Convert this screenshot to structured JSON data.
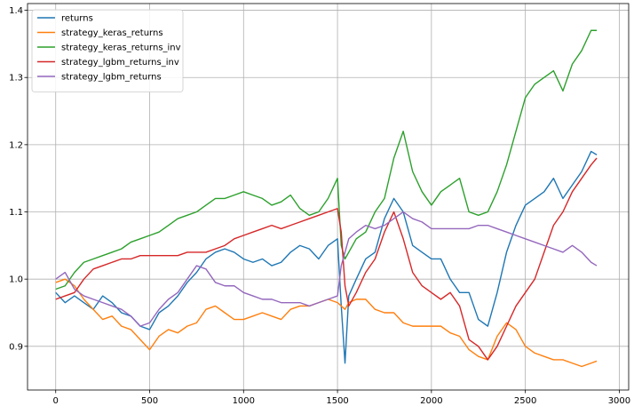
{
  "chart_data": {
    "type": "line",
    "xlim": [
      -150,
      3050
    ],
    "ylim": [
      0.835,
      1.41
    ],
    "xticks": [
      0,
      500,
      1000,
      1500,
      2000,
      2500,
      3000
    ],
    "xtick_labels": [
      "0",
      "500",
      "1000",
      "1500",
      "2000",
      "2500",
      "3000"
    ],
    "yticks": [
      0.9,
      1.0,
      1.1,
      1.2,
      1.3,
      1.4
    ],
    "ytick_labels": [
      "0.9",
      "1.0",
      "1.1",
      "1.2",
      "1.3",
      "1.4"
    ],
    "grid": true,
    "legend_position": "top-left",
    "series": [
      {
        "name": "returns",
        "color": "#1f77b4",
        "x": [
          0,
          50,
          100,
          150,
          200,
          250,
          300,
          350,
          400,
          450,
          500,
          550,
          600,
          650,
          700,
          750,
          800,
          850,
          900,
          950,
          1000,
          1050,
          1100,
          1150,
          1200,
          1250,
          1300,
          1350,
          1400,
          1450,
          1500,
          1520,
          1540,
          1560,
          1600,
          1650,
          1700,
          1750,
          1800,
          1850,
          1900,
          1950,
          2000,
          2050,
          2100,
          2150,
          2200,
          2250,
          2300,
          2350,
          2400,
          2450,
          2500,
          2550,
          2600,
          2650,
          2700,
          2750,
          2800,
          2850,
          2880
        ],
        "y": [
          0.98,
          0.965,
          0.975,
          0.965,
          0.955,
          0.975,
          0.965,
          0.95,
          0.945,
          0.93,
          0.925,
          0.95,
          0.96,
          0.975,
          0.995,
          1.01,
          1.03,
          1.04,
          1.045,
          1.04,
          1.03,
          1.025,
          1.03,
          1.02,
          1.025,
          1.04,
          1.05,
          1.045,
          1.03,
          1.05,
          1.06,
          0.96,
          0.875,
          0.975,
          1.0,
          1.03,
          1.04,
          1.09,
          1.12,
          1.1,
          1.05,
          1.04,
          1.03,
          1.03,
          1.0,
          0.98,
          0.98,
          0.94,
          0.93,
          0.98,
          1.04,
          1.08,
          1.11,
          1.12,
          1.13,
          1.15,
          1.12,
          1.14,
          1.16,
          1.19,
          1.185
        ]
      },
      {
        "name": "strategy_keras_returns",
        "color": "#ff7f0e",
        "x": [
          0,
          50,
          100,
          150,
          200,
          250,
          300,
          350,
          400,
          450,
          500,
          550,
          600,
          650,
          700,
          750,
          800,
          850,
          900,
          950,
          1000,
          1050,
          1100,
          1150,
          1200,
          1250,
          1300,
          1350,
          1400,
          1450,
          1500,
          1520,
          1540,
          1560,
          1600,
          1650,
          1700,
          1750,
          1800,
          1850,
          1900,
          1950,
          2000,
          2050,
          2100,
          2150,
          2200,
          2250,
          2300,
          2350,
          2400,
          2450,
          2500,
          2550,
          2600,
          2650,
          2700,
          2750,
          2800,
          2850,
          2880
        ],
        "y": [
          0.995,
          1.0,
          0.99,
          0.97,
          0.955,
          0.94,
          0.945,
          0.93,
          0.925,
          0.91,
          0.895,
          0.915,
          0.925,
          0.92,
          0.93,
          0.935,
          0.955,
          0.96,
          0.95,
          0.94,
          0.94,
          0.945,
          0.95,
          0.945,
          0.94,
          0.955,
          0.96,
          0.96,
          0.965,
          0.97,
          0.965,
          0.96,
          0.955,
          0.965,
          0.97,
          0.97,
          0.955,
          0.95,
          0.95,
          0.935,
          0.93,
          0.93,
          0.93,
          0.93,
          0.92,
          0.915,
          0.895,
          0.885,
          0.88,
          0.915,
          0.935,
          0.925,
          0.9,
          0.89,
          0.885,
          0.88,
          0.88,
          0.875,
          0.87,
          0.875,
          0.878
        ]
      },
      {
        "name": "strategy_keras_returns_inv",
        "color": "#2ca02c",
        "x": [
          0,
          50,
          100,
          150,
          200,
          250,
          300,
          350,
          400,
          450,
          500,
          550,
          600,
          650,
          700,
          750,
          800,
          850,
          900,
          950,
          1000,
          1050,
          1100,
          1150,
          1200,
          1250,
          1300,
          1350,
          1400,
          1450,
          1500,
          1520,
          1540,
          1560,
          1600,
          1650,
          1700,
          1750,
          1800,
          1850,
          1900,
          1950,
          2000,
          2050,
          2100,
          2150,
          2200,
          2250,
          2300,
          2350,
          2400,
          2450,
          2500,
          2550,
          2600,
          2650,
          2700,
          2750,
          2800,
          2850,
          2880
        ],
        "y": [
          0.985,
          0.99,
          1.01,
          1.025,
          1.03,
          1.035,
          1.04,
          1.045,
          1.055,
          1.06,
          1.065,
          1.07,
          1.08,
          1.09,
          1.095,
          1.1,
          1.11,
          1.12,
          1.12,
          1.125,
          1.13,
          1.125,
          1.12,
          1.11,
          1.115,
          1.125,
          1.105,
          1.095,
          1.1,
          1.12,
          1.15,
          1.05,
          1.03,
          1.04,
          1.06,
          1.07,
          1.1,
          1.12,
          1.18,
          1.22,
          1.16,
          1.13,
          1.11,
          1.13,
          1.14,
          1.15,
          1.1,
          1.095,
          1.1,
          1.13,
          1.17,
          1.22,
          1.27,
          1.29,
          1.3,
          1.31,
          1.28,
          1.32,
          1.34,
          1.37,
          1.37
        ]
      },
      {
        "name": "strategy_lgbm_returns_inv",
        "color": "#d62728",
        "x": [
          0,
          50,
          100,
          150,
          200,
          250,
          300,
          350,
          400,
          450,
          500,
          550,
          600,
          650,
          700,
          750,
          800,
          850,
          900,
          950,
          1000,
          1050,
          1100,
          1150,
          1200,
          1250,
          1300,
          1350,
          1400,
          1450,
          1500,
          1520,
          1540,
          1560,
          1600,
          1650,
          1700,
          1750,
          1800,
          1850,
          1900,
          1950,
          2000,
          2050,
          2100,
          2150,
          2200,
          2250,
          2300,
          2350,
          2400,
          2450,
          2500,
          2550,
          2600,
          2650,
          2700,
          2750,
          2800,
          2850,
          2880
        ],
        "y": [
          0.97,
          0.975,
          0.98,
          1.0,
          1.015,
          1.02,
          1.025,
          1.03,
          1.03,
          1.035,
          1.035,
          1.035,
          1.035,
          1.035,
          1.04,
          1.04,
          1.04,
          1.045,
          1.05,
          1.06,
          1.065,
          1.07,
          1.075,
          1.08,
          1.075,
          1.08,
          1.085,
          1.09,
          1.095,
          1.1,
          1.105,
          1.07,
          0.99,
          0.96,
          0.98,
          1.01,
          1.03,
          1.07,
          1.1,
          1.06,
          1.01,
          0.99,
          0.98,
          0.97,
          0.98,
          0.96,
          0.91,
          0.9,
          0.88,
          0.9,
          0.93,
          0.96,
          0.98,
          1.0,
          1.04,
          1.08,
          1.1,
          1.13,
          1.15,
          1.17,
          1.18
        ]
      },
      {
        "name": "strategy_lgbm_returns",
        "color": "#9467bd",
        "x": [
          0,
          50,
          100,
          150,
          200,
          250,
          300,
          350,
          400,
          450,
          500,
          550,
          600,
          650,
          700,
          750,
          800,
          850,
          900,
          950,
          1000,
          1050,
          1100,
          1150,
          1200,
          1250,
          1300,
          1350,
          1400,
          1450,
          1500,
          1520,
          1540,
          1560,
          1600,
          1650,
          1700,
          1750,
          1800,
          1850,
          1900,
          1950,
          2000,
          2050,
          2100,
          2150,
          2200,
          2250,
          2300,
          2350,
          2400,
          2450,
          2500,
          2550,
          2600,
          2650,
          2700,
          2750,
          2800,
          2850,
          2880
        ],
        "y": [
          1.0,
          1.01,
          0.985,
          0.975,
          0.97,
          0.965,
          0.96,
          0.955,
          0.945,
          0.93,
          0.935,
          0.955,
          0.97,
          0.98,
          1.0,
          1.02,
          1.015,
          0.995,
          0.99,
          0.99,
          0.98,
          0.975,
          0.97,
          0.97,
          0.965,
          0.965,
          0.965,
          0.96,
          0.965,
          0.97,
          0.975,
          1.02,
          1.04,
          1.06,
          1.07,
          1.08,
          1.075,
          1.08,
          1.09,
          1.1,
          1.09,
          1.085,
          1.075,
          1.075,
          1.075,
          1.075,
          1.075,
          1.08,
          1.08,
          1.075,
          1.07,
          1.065,
          1.06,
          1.055,
          1.05,
          1.045,
          1.04,
          1.05,
          1.04,
          1.025,
          1.02
        ]
      }
    ]
  }
}
